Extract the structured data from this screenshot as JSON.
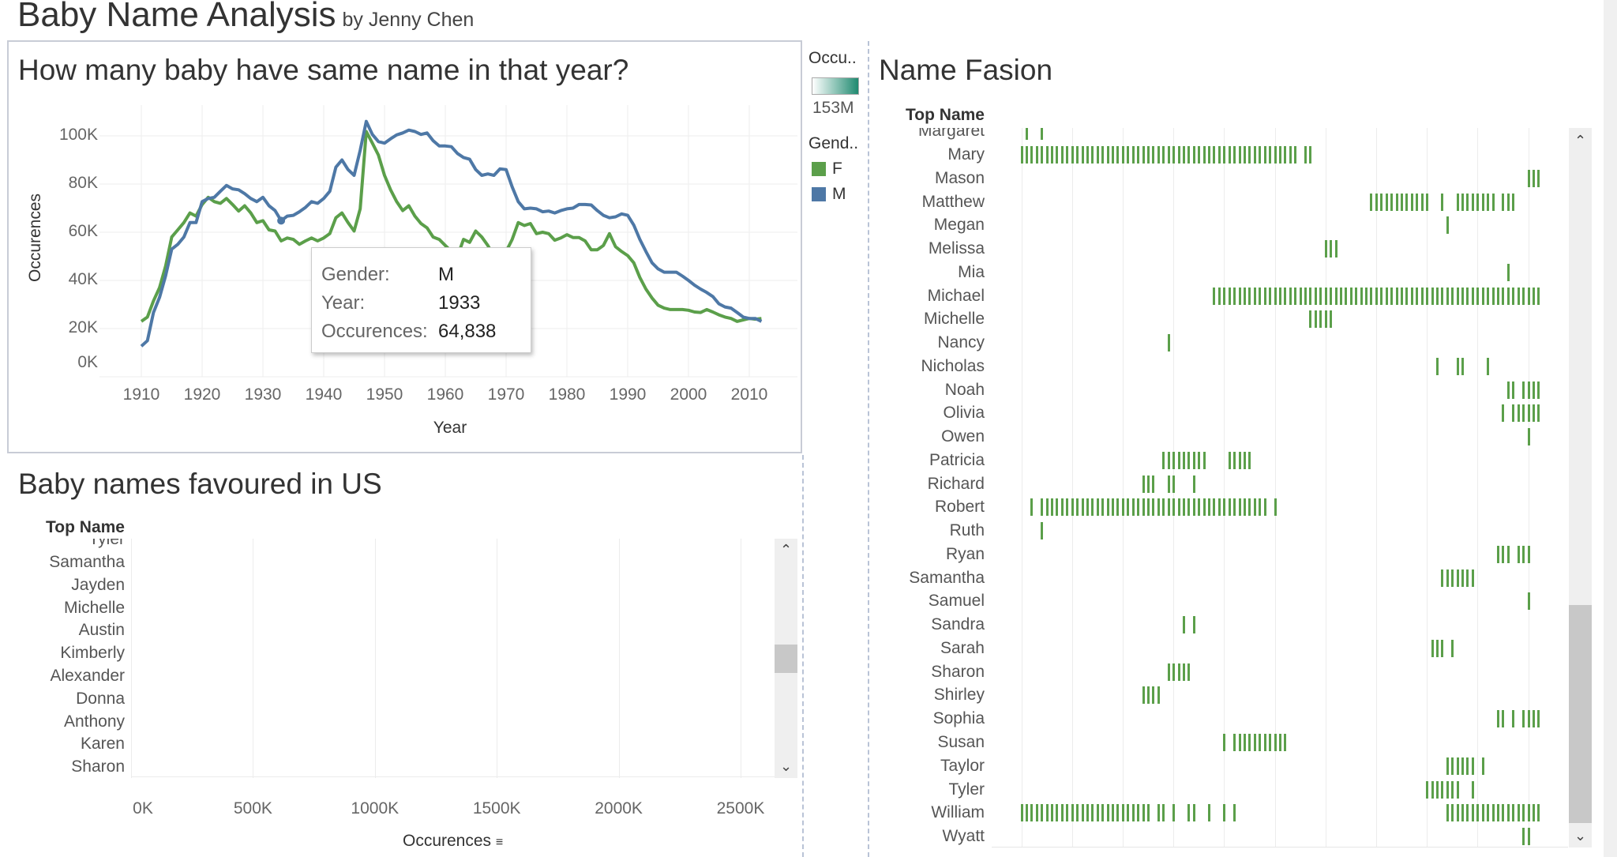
{
  "dashboard": {
    "title": "Baby Name Analysis",
    "byline": "by Jenny Chen"
  },
  "colors": {
    "female": "#5b9f4a",
    "male": "#4e78a6",
    "scale_start": "#ffffff",
    "scale_end": "#1f8a70"
  },
  "line_chart": {
    "title": "How many baby have same name in that year?",
    "chart_data": {
      "type": "line",
      "title": "How many baby have same name in that year?",
      "xlabel": "Year",
      "ylabel": "Occurences",
      "x_ticks": [
        "1910",
        "1920",
        "1930",
        "1940",
        "1950",
        "1960",
        "1970",
        "1980",
        "1990",
        "2000",
        "2010"
      ],
      "y_ticks": [
        "100K",
        "80K",
        "60K",
        "40K",
        "20K",
        "0K"
      ],
      "xlim": [
        1906,
        2016
      ],
      "ylim": [
        0,
        110000
      ],
      "grid": true,
      "x_start": 1910,
      "series": [
        {
          "name": "F",
          "values_k": [
            23,
            24.8,
            31.5,
            37,
            46,
            58,
            61,
            64,
            68,
            66.7,
            71.5,
            74.5,
            72.7,
            72,
            74,
            71.5,
            68.8,
            71,
            68,
            64,
            64.8,
            61,
            60.5,
            56.4,
            57.6,
            57,
            55,
            56.4,
            57.6,
            56.4,
            57.6,
            59.4,
            66,
            68,
            64,
            60.5,
            69.7,
            101.8,
            97,
            92,
            83.6,
            77.6,
            72.7,
            69,
            71,
            66.7,
            63.6,
            61.8,
            58,
            57,
            54.5,
            52,
            50,
            57,
            55.8,
            60.5,
            58,
            54.5,
            50,
            48,
            52,
            57,
            64,
            62.8,
            63.6,
            59.4,
            60,
            59.4,
            56.7,
            57.6,
            59,
            57.8,
            57.8,
            56.4,
            52.7,
            52.7,
            54.5,
            59.4,
            54,
            52,
            50.3,
            47.3,
            41.2,
            36.4,
            32.7,
            29.7,
            28.5,
            27.9,
            27.9,
            27.9,
            27.6,
            26.9,
            26.7,
            27.9,
            26.9,
            25.7,
            24.8,
            24.2,
            23,
            23.6,
            24.2,
            23.9,
            24.2
          ]
        },
        {
          "name": "M",
          "values_k": [
            12.7,
            15,
            26.7,
            33,
            42,
            53,
            55,
            58,
            64,
            64,
            72.7,
            74,
            74.5,
            77,
            79.4,
            78,
            77.6,
            76,
            74,
            72.7,
            74.5,
            71,
            69,
            64.8,
            66.7,
            67,
            68.5,
            70.3,
            72.7,
            72,
            74,
            77,
            87,
            90,
            86,
            83.6,
            94,
            106,
            100.6,
            97.6,
            97,
            98.8,
            100.4,
            101.2,
            102.4,
            101.8,
            100.6,
            101.2,
            98,
            95.8,
            95.8,
            95.5,
            92.7,
            91,
            90.3,
            86,
            83.6,
            84.2,
            83.6,
            86.3,
            86,
            78.8,
            72.7,
            69.7,
            70,
            69.7,
            68.5,
            68.8,
            68,
            69,
            69.7,
            70,
            71.5,
            71.5,
            71.3,
            69,
            67,
            66,
            66.4,
            67.6,
            67,
            63,
            57,
            52,
            47.3,
            44.8,
            43.4,
            43.4,
            43.4,
            41.8,
            40,
            38,
            36.4,
            35,
            33.3,
            30.3,
            29,
            28.5,
            26.7,
            24.8,
            24.2,
            24.2,
            23
          ]
        }
      ]
    },
    "tooltip": {
      "rows": [
        {
          "label": "Gender:",
          "value": "M"
        },
        {
          "label": "Year:",
          "value": "1933"
        },
        {
          "label": "Occurences:",
          "value": "64,838"
        }
      ]
    }
  },
  "legend": {
    "occurrence_title": "Occu..",
    "occurrence_max": "153M",
    "gender_title": "Gend..",
    "items": [
      {
        "label": "F"
      },
      {
        "label": "M"
      }
    ]
  },
  "bar_chart": {
    "title": "Baby names favoured in US",
    "header": "Top Name",
    "clipped_top_name": "Tyler",
    "names": [
      "Samantha",
      "Jayden",
      "Michelle",
      "Austin",
      "Kimberly",
      "Alexander",
      "Donna",
      "Anthony",
      "Karen",
      "Sharon"
    ],
    "x_ticks": [
      "0K",
      "500K",
      "1000K",
      "1500K",
      "2000K",
      "2500K"
    ],
    "xlabel": "Occurences",
    "sort_icon": "sort-descending-icon",
    "scroll_position": 0.55
  },
  "name_fashion": {
    "title": "Name Fasion",
    "header": "Top Name",
    "x_start_year": 1910,
    "x_end_year": 2012,
    "rows": [
      {
        "name": "Margaret",
        "clipped": true,
        "years": [
          [
            1911,
            1911
          ],
          [
            1914,
            1914
          ]
        ]
      },
      {
        "name": "Mary",
        "years": [
          [
            1910,
            1964
          ],
          [
            1966,
            1967
          ]
        ]
      },
      {
        "name": "Mason",
        "years": [
          [
            2010,
            2012
          ]
        ]
      },
      {
        "name": "Matthew",
        "years": [
          [
            1979,
            1990
          ],
          [
            1993,
            1993
          ],
          [
            1996,
            2003
          ],
          [
            2005,
            2007
          ]
        ]
      },
      {
        "name": "Megan",
        "years": [
          [
            1994,
            1994
          ]
        ]
      },
      {
        "name": "Melissa",
        "years": [
          [
            1970,
            1972
          ]
        ]
      },
      {
        "name": "Mia",
        "years": [
          [
            2006,
            2006
          ]
        ]
      },
      {
        "name": "Michael",
        "years": [
          [
            1948,
            2012
          ]
        ]
      },
      {
        "name": "Michelle",
        "years": [
          [
            1967,
            1971
          ]
        ]
      },
      {
        "name": "Nancy",
        "years": [
          [
            1939,
            1939
          ]
        ]
      },
      {
        "name": "Nicholas",
        "years": [
          [
            1992,
            1992
          ],
          [
            1996,
            1997
          ],
          [
            2002,
            2002
          ]
        ]
      },
      {
        "name": "Noah",
        "years": [
          [
            2006,
            2007
          ],
          [
            2009,
            2012
          ]
        ]
      },
      {
        "name": "Olivia",
        "years": [
          [
            2005,
            2005
          ],
          [
            2007,
            2012
          ]
        ]
      },
      {
        "name": "Owen",
        "years": [
          [
            2010,
            2010
          ]
        ]
      },
      {
        "name": "Patricia",
        "years": [
          [
            1938,
            1946
          ],
          [
            1951,
            1955
          ]
        ]
      },
      {
        "name": "Richard",
        "years": [
          [
            1934,
            1936
          ],
          [
            1939,
            1940
          ],
          [
            1944,
            1944
          ]
        ]
      },
      {
        "name": "Robert",
        "years": [
          [
            1912,
            1912
          ],
          [
            1914,
            1958
          ],
          [
            1960,
            1960
          ]
        ]
      },
      {
        "name": "Ruth",
        "years": [
          [
            1914,
            1914
          ]
        ]
      },
      {
        "name": "Ryan",
        "years": [
          [
            2004,
            2006
          ],
          [
            2008,
            2010
          ]
        ]
      },
      {
        "name": "Samantha",
        "years": [
          [
            1993,
            1999
          ]
        ]
      },
      {
        "name": "Samuel",
        "years": [
          [
            2010,
            2010
          ]
        ]
      },
      {
        "name": "Sandra",
        "years": [
          [
            1942,
            1942
          ],
          [
            1944,
            1944
          ]
        ]
      },
      {
        "name": "Sarah",
        "years": [
          [
            1991,
            1993
          ],
          [
            1995,
            1995
          ]
        ]
      },
      {
        "name": "Sharon",
        "years": [
          [
            1939,
            1943
          ]
        ]
      },
      {
        "name": "Shirley",
        "years": [
          [
            1934,
            1937
          ]
        ]
      },
      {
        "name": "Sophia",
        "years": [
          [
            2004,
            2005
          ],
          [
            2007,
            2007
          ],
          [
            2009,
            2012
          ]
        ]
      },
      {
        "name": "Susan",
        "years": [
          [
            1950,
            1950
          ],
          [
            1952,
            1962
          ]
        ]
      },
      {
        "name": "Taylor",
        "years": [
          [
            1994,
            1999
          ],
          [
            2001,
            2001
          ]
        ]
      },
      {
        "name": "Tyler",
        "years": [
          [
            1990,
            1996
          ],
          [
            1999,
            1999
          ]
        ]
      },
      {
        "name": "William",
        "years": [
          [
            1910,
            1935
          ],
          [
            1937,
            1938
          ],
          [
            1940,
            1940
          ],
          [
            1943,
            1944
          ],
          [
            1947,
            1947
          ],
          [
            1950,
            1950
          ],
          [
            1952,
            1952
          ],
          [
            1994,
            2012
          ]
        ]
      },
      {
        "name": "Wyatt",
        "years": [
          [
            2009,
            2010
          ]
        ]
      }
    ],
    "scroll_position": 0.7
  }
}
